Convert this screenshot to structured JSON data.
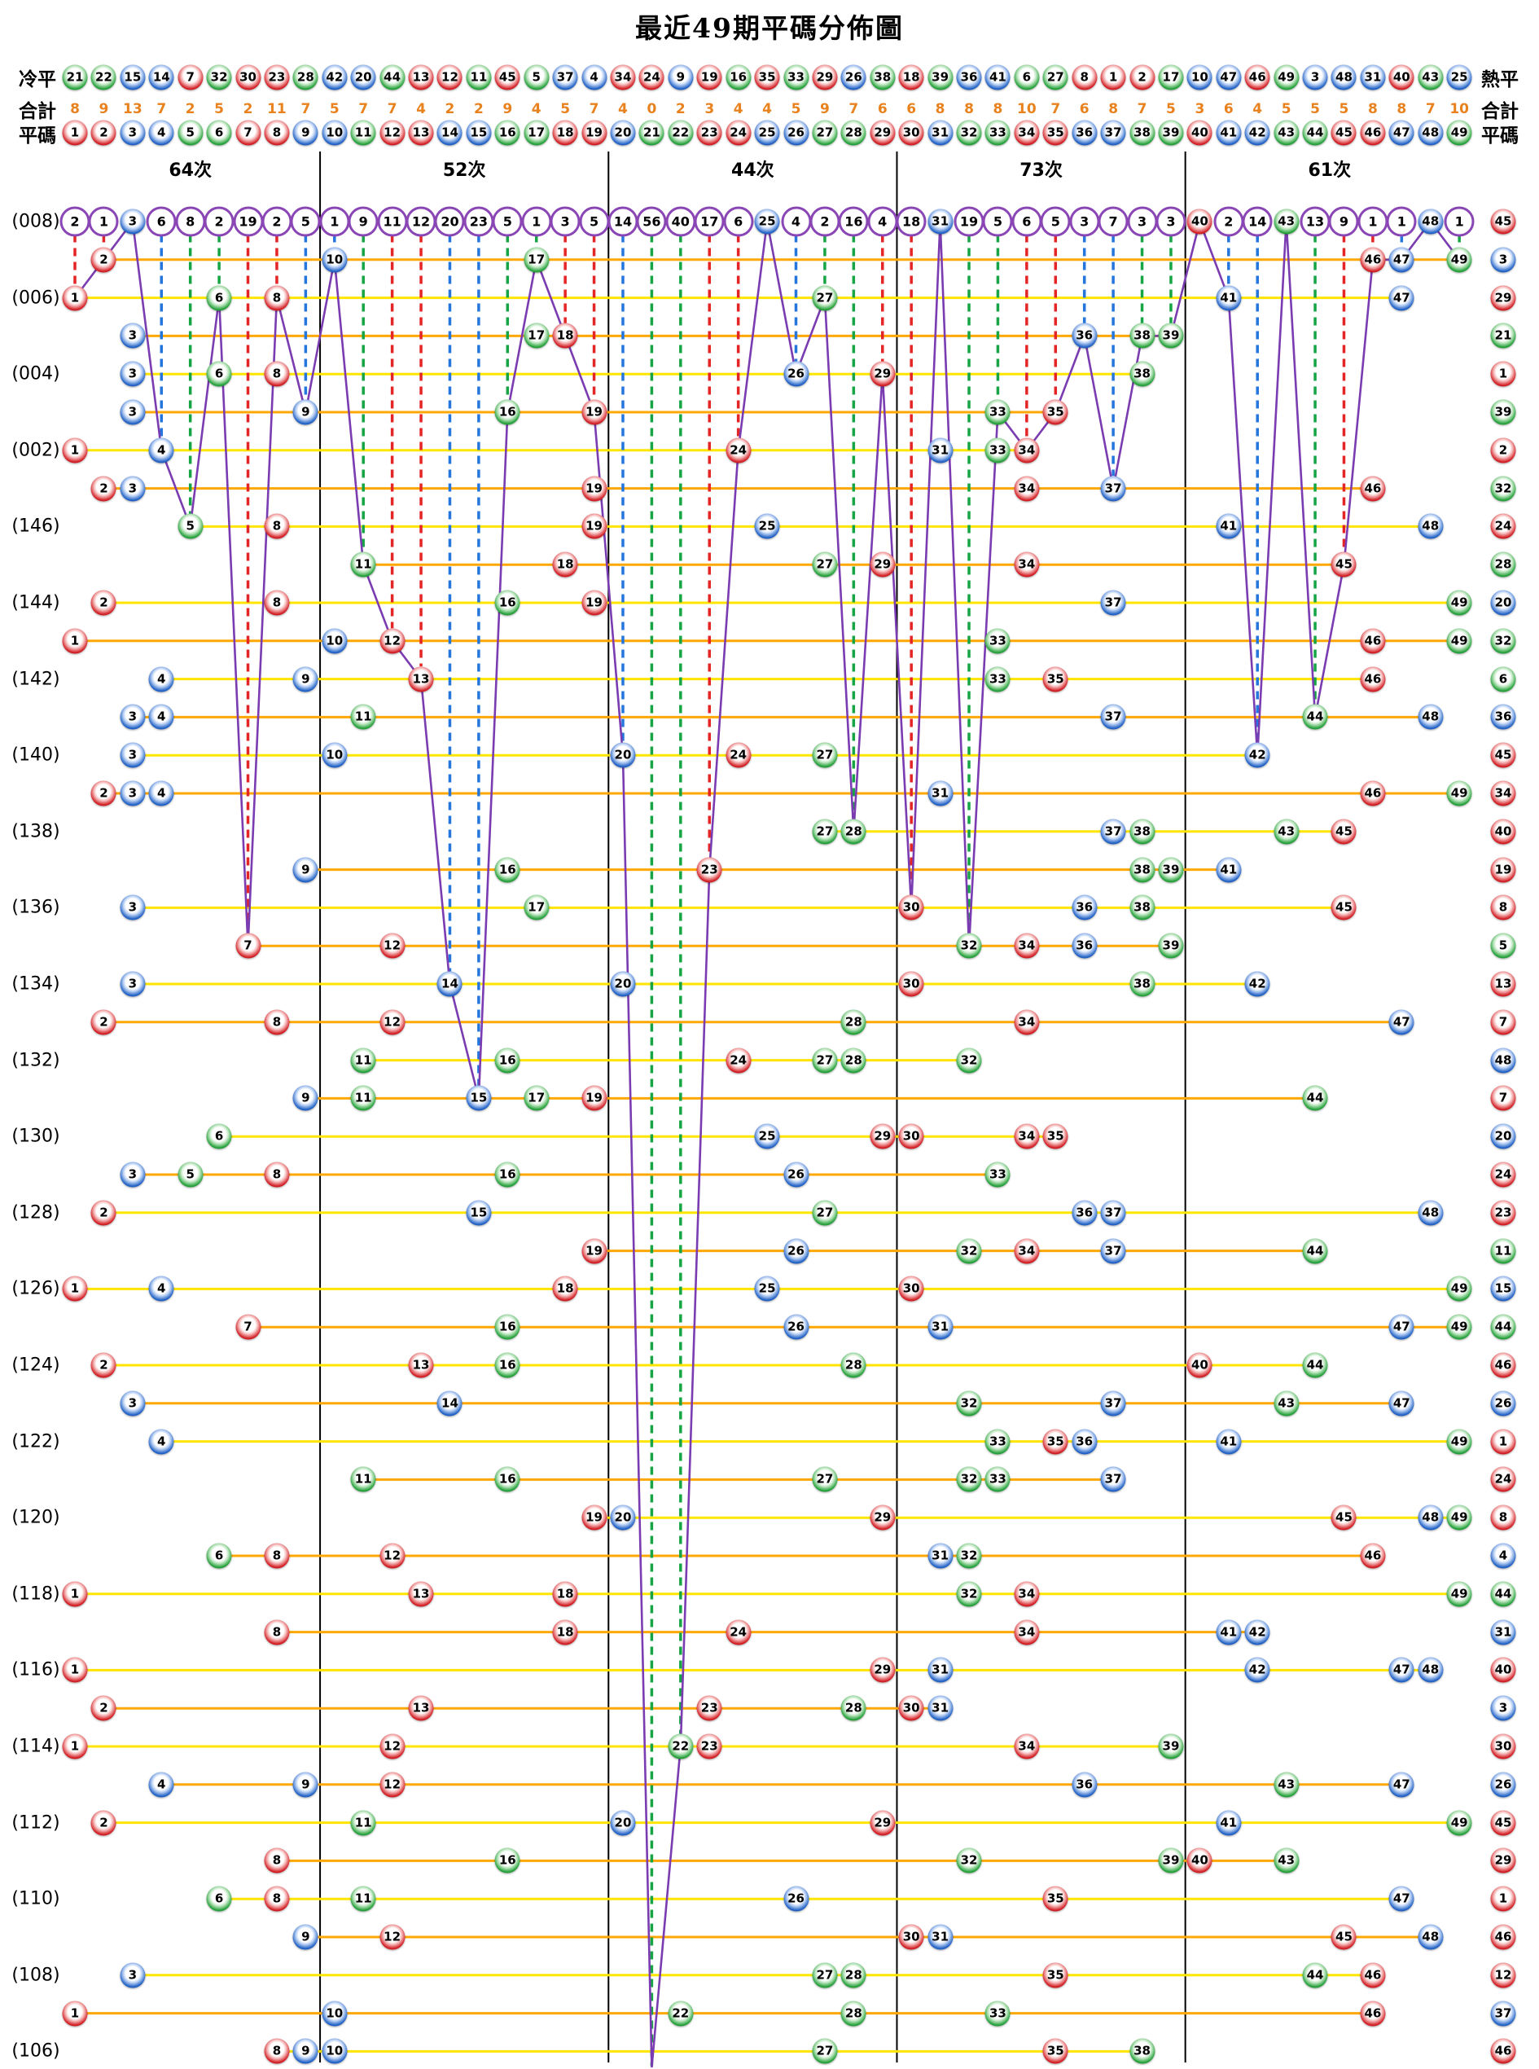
{
  "title": "最近49期平碼分佈圖",
  "header": {
    "cold_label": "冷平",
    "hot_label": "熱平",
    "total_label_left": "合計",
    "total_label_right": "合計",
    "flat_label_left": "平碼",
    "flat_label_right": "平碼"
  },
  "colors": {
    "red": "#d32026",
    "blue": "#2363c6",
    "green": "#27a23c",
    "dash_red": "#e42525",
    "dash_blue": "#2476dc",
    "dash_green": "#17a445",
    "purple_line": "#7a3cb0",
    "gap_ring": "#8a46b4",
    "row_line_even": "#ffe500",
    "row_line_odd": "#ffa805",
    "total_text": "#e8821e",
    "separator": "#000000"
  },
  "ball_color_map": {
    "red": [
      1,
      2,
      7,
      8,
      12,
      13,
      18,
      19,
      23,
      24,
      29,
      30,
      34,
      35,
      40,
      45,
      46
    ],
    "blue": [
      3,
      4,
      9,
      10,
      14,
      15,
      20,
      25,
      26,
      31,
      36,
      37,
      41,
      42,
      47,
      48
    ],
    "green": [
      5,
      6,
      11,
      16,
      17,
      21,
      22,
      27,
      28,
      32,
      33,
      38,
      39,
      43,
      44,
      49
    ]
  },
  "chart_data": {
    "type": "scatter",
    "title": "最近49期平碼分佈圖",
    "x_axis": "平碼 1-49 (ball numbers)",
    "y_axis": "期數 (draw periods, most recent first)",
    "cold_order": [
      21,
      22,
      15,
      14,
      7,
      32,
      30,
      23,
      28,
      42,
      20,
      44,
      13,
      12,
      11,
      45,
      5,
      37,
      4,
      34,
      24,
      9,
      19,
      16,
      35,
      33,
      29,
      26,
      38,
      18,
      39,
      36,
      41,
      6,
      27,
      8,
      1,
      2,
      17,
      10,
      47,
      46,
      49,
      3,
      48,
      31,
      40,
      43,
      25
    ],
    "totals": [
      8,
      9,
      13,
      7,
      2,
      5,
      2,
      11,
      7,
      5,
      7,
      7,
      4,
      2,
      2,
      9,
      4,
      5,
      7,
      4,
      0,
      2,
      3,
      4,
      4,
      5,
      9,
      7,
      6,
      6,
      8,
      8,
      8,
      10,
      7,
      6,
      8,
      7,
      5,
      3,
      6,
      4,
      5,
      5,
      5,
      8,
      8,
      7,
      10
    ],
    "gaps": [
      2,
      1,
      0,
      6,
      8,
      2,
      19,
      2,
      5,
      1,
      9,
      11,
      12,
      20,
      23,
      5,
      1,
      3,
      5,
      14,
      56,
      40,
      17,
      6,
      0,
      4,
      2,
      16,
      4,
      18,
      0,
      19,
      5,
      6,
      5,
      3,
      7,
      3,
      3,
      0,
      2,
      14,
      0,
      13,
      9,
      1,
      1,
      0,
      1
    ],
    "groups": [
      {
        "label": "64次",
        "from": 1,
        "to": 9
      },
      {
        "label": "52次",
        "from": 10,
        "to": 19
      },
      {
        "label": "44次",
        "from": 20,
        "to": 29
      },
      {
        "label": "73次",
        "from": 30,
        "to": 39
      },
      {
        "label": "61次",
        "from": 40,
        "to": 49
      }
    ],
    "rows": [
      {
        "label": "(008)",
        "balls": [
          3,
          25,
          31,
          40,
          43,
          48
        ],
        "special": 45
      },
      {
        "label": "",
        "balls": [
          2,
          10,
          17,
          46,
          47,
          49
        ],
        "special": 3
      },
      {
        "label": "(006)",
        "balls": [
          1,
          6,
          8,
          27,
          41,
          47
        ],
        "special": 29
      },
      {
        "label": "",
        "balls": [
          3,
          17,
          18,
          36,
          38,
          39
        ],
        "special": 21
      },
      {
        "label": "(004)",
        "balls": [
          3,
          6,
          8,
          26,
          29,
          38
        ],
        "special": 1
      },
      {
        "label": "",
        "balls": [
          3,
          9,
          16,
          19,
          33,
          35
        ],
        "special": 39
      },
      {
        "label": "(002)",
        "balls": [
          1,
          4,
          24,
          31,
          33,
          34
        ],
        "special": 2
      },
      {
        "label": "",
        "balls": [
          2,
          3,
          19,
          34,
          37,
          46
        ],
        "special": 32
      },
      {
        "label": "(146)",
        "balls": [
          5,
          8,
          19,
          25,
          41,
          48
        ],
        "special": 24
      },
      {
        "label": "",
        "balls": [
          11,
          18,
          27,
          29,
          34,
          45
        ],
        "special": 28
      },
      {
        "label": "(144)",
        "balls": [
          2,
          8,
          16,
          19,
          37,
          49
        ],
        "special": 20
      },
      {
        "label": "",
        "balls": [
          1,
          10,
          12,
          33,
          46,
          49
        ],
        "special": 32
      },
      {
        "label": "(142)",
        "balls": [
          4,
          9,
          13,
          33,
          35,
          46
        ],
        "special": 6
      },
      {
        "label": "",
        "balls": [
          3,
          4,
          11,
          37,
          44,
          48
        ],
        "special": 36
      },
      {
        "label": "(140)",
        "balls": [
          3,
          10,
          20,
          24,
          27,
          42
        ],
        "special": 45
      },
      {
        "label": "",
        "balls": [
          2,
          3,
          4,
          31,
          46,
          49
        ],
        "special": 34
      },
      {
        "label": "(138)",
        "balls": [
          27,
          28,
          37,
          38,
          43,
          45
        ],
        "special": 40
      },
      {
        "label": "",
        "balls": [
          9,
          16,
          23,
          38,
          39,
          41
        ],
        "special": 19
      },
      {
        "label": "(136)",
        "balls": [
          3,
          17,
          30,
          36,
          38,
          45
        ],
        "special": 8
      },
      {
        "label": "",
        "balls": [
          7,
          12,
          32,
          34,
          36,
          39
        ],
        "special": 5
      },
      {
        "label": "(134)",
        "balls": [
          3,
          14,
          20,
          30,
          38,
          42
        ],
        "special": 13
      },
      {
        "label": "",
        "balls": [
          2,
          8,
          12,
          28,
          34,
          47
        ],
        "special": 7
      },
      {
        "label": "(132)",
        "balls": [
          11,
          16,
          24,
          27,
          28,
          32
        ],
        "special": 48
      },
      {
        "label": "",
        "balls": [
          9,
          11,
          15,
          17,
          19,
          44
        ],
        "special": 7
      },
      {
        "label": "(130)",
        "balls": [
          6,
          25,
          29,
          30,
          34,
          35
        ],
        "special": 20
      },
      {
        "label": "",
        "balls": [
          3,
          5,
          8,
          16,
          26,
          33
        ],
        "special": 24
      },
      {
        "label": "(128)",
        "balls": [
          2,
          15,
          27,
          36,
          37,
          48
        ],
        "special": 23
      },
      {
        "label": "",
        "balls": [
          19,
          26,
          32,
          34,
          37,
          44
        ],
        "special": 11
      },
      {
        "label": "(126)",
        "balls": [
          1,
          4,
          18,
          25,
          30,
          49
        ],
        "special": 15
      },
      {
        "label": "",
        "balls": [
          7,
          16,
          26,
          31,
          47,
          49
        ],
        "special": 44
      },
      {
        "label": "(124)",
        "balls": [
          2,
          13,
          16,
          28,
          40,
          44
        ],
        "special": 46
      },
      {
        "label": "",
        "balls": [
          3,
          14,
          32,
          37,
          43,
          47
        ],
        "special": 26
      },
      {
        "label": "(122)",
        "balls": [
          4,
          33,
          35,
          36,
          41,
          49
        ],
        "special": 1
      },
      {
        "label": "",
        "balls": [
          11,
          16,
          27,
          32,
          33,
          37
        ],
        "special": 24
      },
      {
        "label": "(120)",
        "balls": [
          19,
          20,
          29,
          45,
          48,
          49
        ],
        "special": 8
      },
      {
        "label": "",
        "balls": [
          6,
          8,
          12,
          31,
          32,
          46
        ],
        "special": 4
      },
      {
        "label": "(118)",
        "balls": [
          1,
          13,
          18,
          32,
          34,
          49
        ],
        "special": 44
      },
      {
        "label": "",
        "balls": [
          8,
          18,
          24,
          34,
          41,
          42
        ],
        "special": 31
      },
      {
        "label": "(116)",
        "balls": [
          1,
          29,
          31,
          42,
          47,
          48
        ],
        "special": 40
      },
      {
        "label": "",
        "balls": [
          2,
          13,
          23,
          28,
          30,
          31
        ],
        "special": 3
      },
      {
        "label": "(114)",
        "balls": [
          1,
          12,
          22,
          23,
          34,
          39
        ],
        "special": 30
      },
      {
        "label": "",
        "balls": [
          4,
          9,
          12,
          36,
          43,
          47
        ],
        "special": 26
      },
      {
        "label": "(112)",
        "balls": [
          2,
          11,
          20,
          29,
          41,
          49
        ],
        "special": 45
      },
      {
        "label": "",
        "balls": [
          8,
          16,
          32,
          39,
          40,
          43
        ],
        "special": 29
      },
      {
        "label": "(110)",
        "balls": [
          6,
          8,
          11,
          26,
          35,
          47
        ],
        "special": 1
      },
      {
        "label": "",
        "balls": [
          9,
          12,
          30,
          31,
          45,
          48
        ],
        "special": 46
      },
      {
        "label": "(108)",
        "balls": [
          3,
          27,
          28,
          35,
          44,
          46
        ],
        "special": 12
      },
      {
        "label": "",
        "balls": [
          1,
          10,
          22,
          28,
          33,
          46
        ],
        "special": 37
      },
      {
        "label": "(106)",
        "balls": [
          8,
          9,
          10,
          27,
          35,
          38
        ],
        "special": 46
      }
    ]
  }
}
